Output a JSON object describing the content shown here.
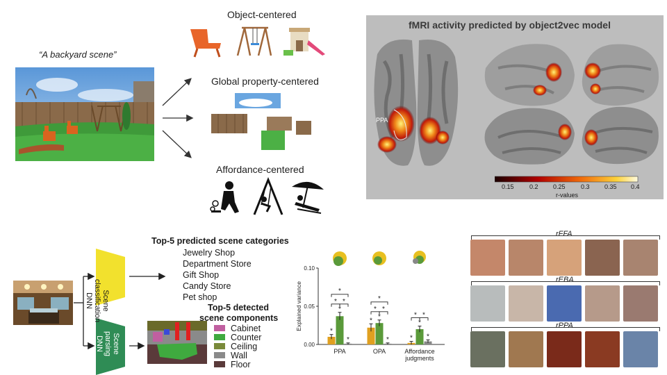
{
  "top_left": {
    "scene_caption": "“A backyard scene”",
    "object_title": "Object-centered",
    "global_title": "Global property-centered",
    "affordance_title": "Affordance-centered"
  },
  "fmri": {
    "title": "fMRI activity predicted by object2vec model",
    "ppa_label": "PPA",
    "colorbar_ticks": [
      "0.15",
      "0.2",
      "0.25",
      "0.3",
      "0.35",
      "0.4"
    ],
    "colorbar_label": "r-values",
    "colors": {
      "bg": "#bdbdbd",
      "brain_light": "#9e9e9e",
      "brain_dark": "#6a6a6a"
    }
  },
  "dnn": {
    "classification_label": "Scene classification DNN",
    "parsing_label": "Scene parsing DNN",
    "classification_color": "#f2e12d",
    "parsing_color": "#2f8c55",
    "top5_categories_title": "Top-5  predicted scene categories",
    "top5_categories": [
      "Jewelry Shop",
      "Department Store",
      "Gift Shop",
      "Candy Store",
      "Pet shop"
    ],
    "top5_components_title_1": "Top-5 detected",
    "top5_components_title_2": "scene components",
    "components": [
      {
        "name": "Cabinet",
        "color": "#c05fa0"
      },
      {
        "name": "Counter",
        "color": "#3faa3f"
      },
      {
        "name": "Ceiling",
        "color": "#7a8a3a"
      },
      {
        "name": "Wall",
        "color": "#8a8a8a"
      },
      {
        "name": "Floor",
        "color": "#5a3a3a"
      }
    ]
  },
  "chart_data": {
    "type": "bar",
    "title": "",
    "xlabel": "",
    "ylabel": "Explained variance",
    "ylim": [
      0,
      0.1
    ],
    "yticks": [
      "0.00",
      "0.05",
      "0.10"
    ],
    "categories": [
      "PPA",
      "OPA",
      "Affordance judgments"
    ],
    "category_lines": [
      [
        "PPA"
      ],
      [
        "OPA"
      ],
      [
        "Affordance",
        "judgments"
      ]
    ],
    "series": [
      {
        "color": "#e0a020",
        "values": [
          0.01,
          0.022,
          0.002
        ],
        "errors": [
          0.003,
          0.005,
          0.002
        ]
      },
      {
        "color": "#5a9a3a",
        "values": [
          0.037,
          0.028,
          0.02
        ],
        "errors": [
          0.005,
          0.004,
          0.004
        ]
      },
      {
        "color": "#888888",
        "values": [
          0.001,
          0.001,
          0.004
        ],
        "errors": [
          0.001,
          0.001,
          0.002
        ]
      }
    ],
    "star": "*"
  },
  "right_bottom": {
    "rFFA": "rFFA",
    "rEBA": "rEBA",
    "rPPA": "rPPA"
  }
}
